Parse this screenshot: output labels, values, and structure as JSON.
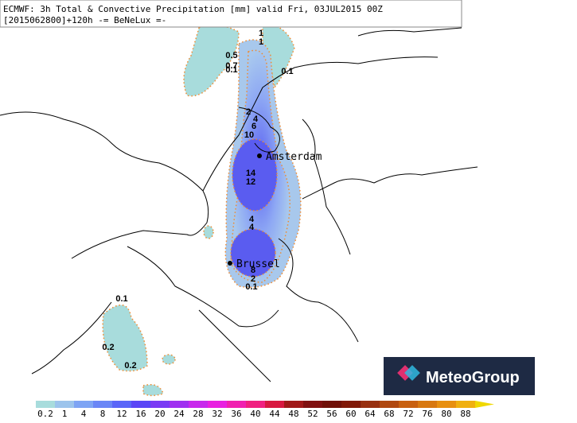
{
  "header": {
    "line1": "ECMWF: 3h Total & Convective Precipitation [mm] valid Fri, 03JUL2015 00Z",
    "line2": "[2015062800]+120h -= BeNeLux =-"
  },
  "cities": [
    "Amsterdam",
    "Brussel"
  ],
  "contour_labels": [
    "1",
    "1",
    "0.5",
    "0.7",
    "0.1",
    "0.1",
    "2",
    "4",
    "6",
    "10",
    "14",
    "12",
    "4",
    "4",
    "8",
    "2",
    "0.1",
    "0.1",
    "0.2",
    "0.2"
  ],
  "colorbar": {
    "labels": [
      "0.2",
      "1",
      "4",
      "8",
      "12",
      "16",
      "20",
      "24",
      "28",
      "32",
      "36",
      "40",
      "44",
      "48",
      "52",
      "56",
      "60",
      "64",
      "68",
      "72",
      "76",
      "80",
      "88"
    ],
    "colors": [
      "#a8dcdc",
      "#9cc4ec",
      "#7ea4f4",
      "#6a86f6",
      "#5a66f8",
      "#5a46f6",
      "#7a3af4",
      "#a030f0",
      "#c828ec",
      "#e820e0",
      "#f020b0",
      "#f02080",
      "#d81840",
      "#a01818",
      "#801010",
      "#701008",
      "#801808",
      "#983010",
      "#b04810",
      "#c86010",
      "#d87810",
      "#e89010",
      "#f0b010",
      "#f0d800"
    ]
  },
  "logo": "MeteoGroup"
}
